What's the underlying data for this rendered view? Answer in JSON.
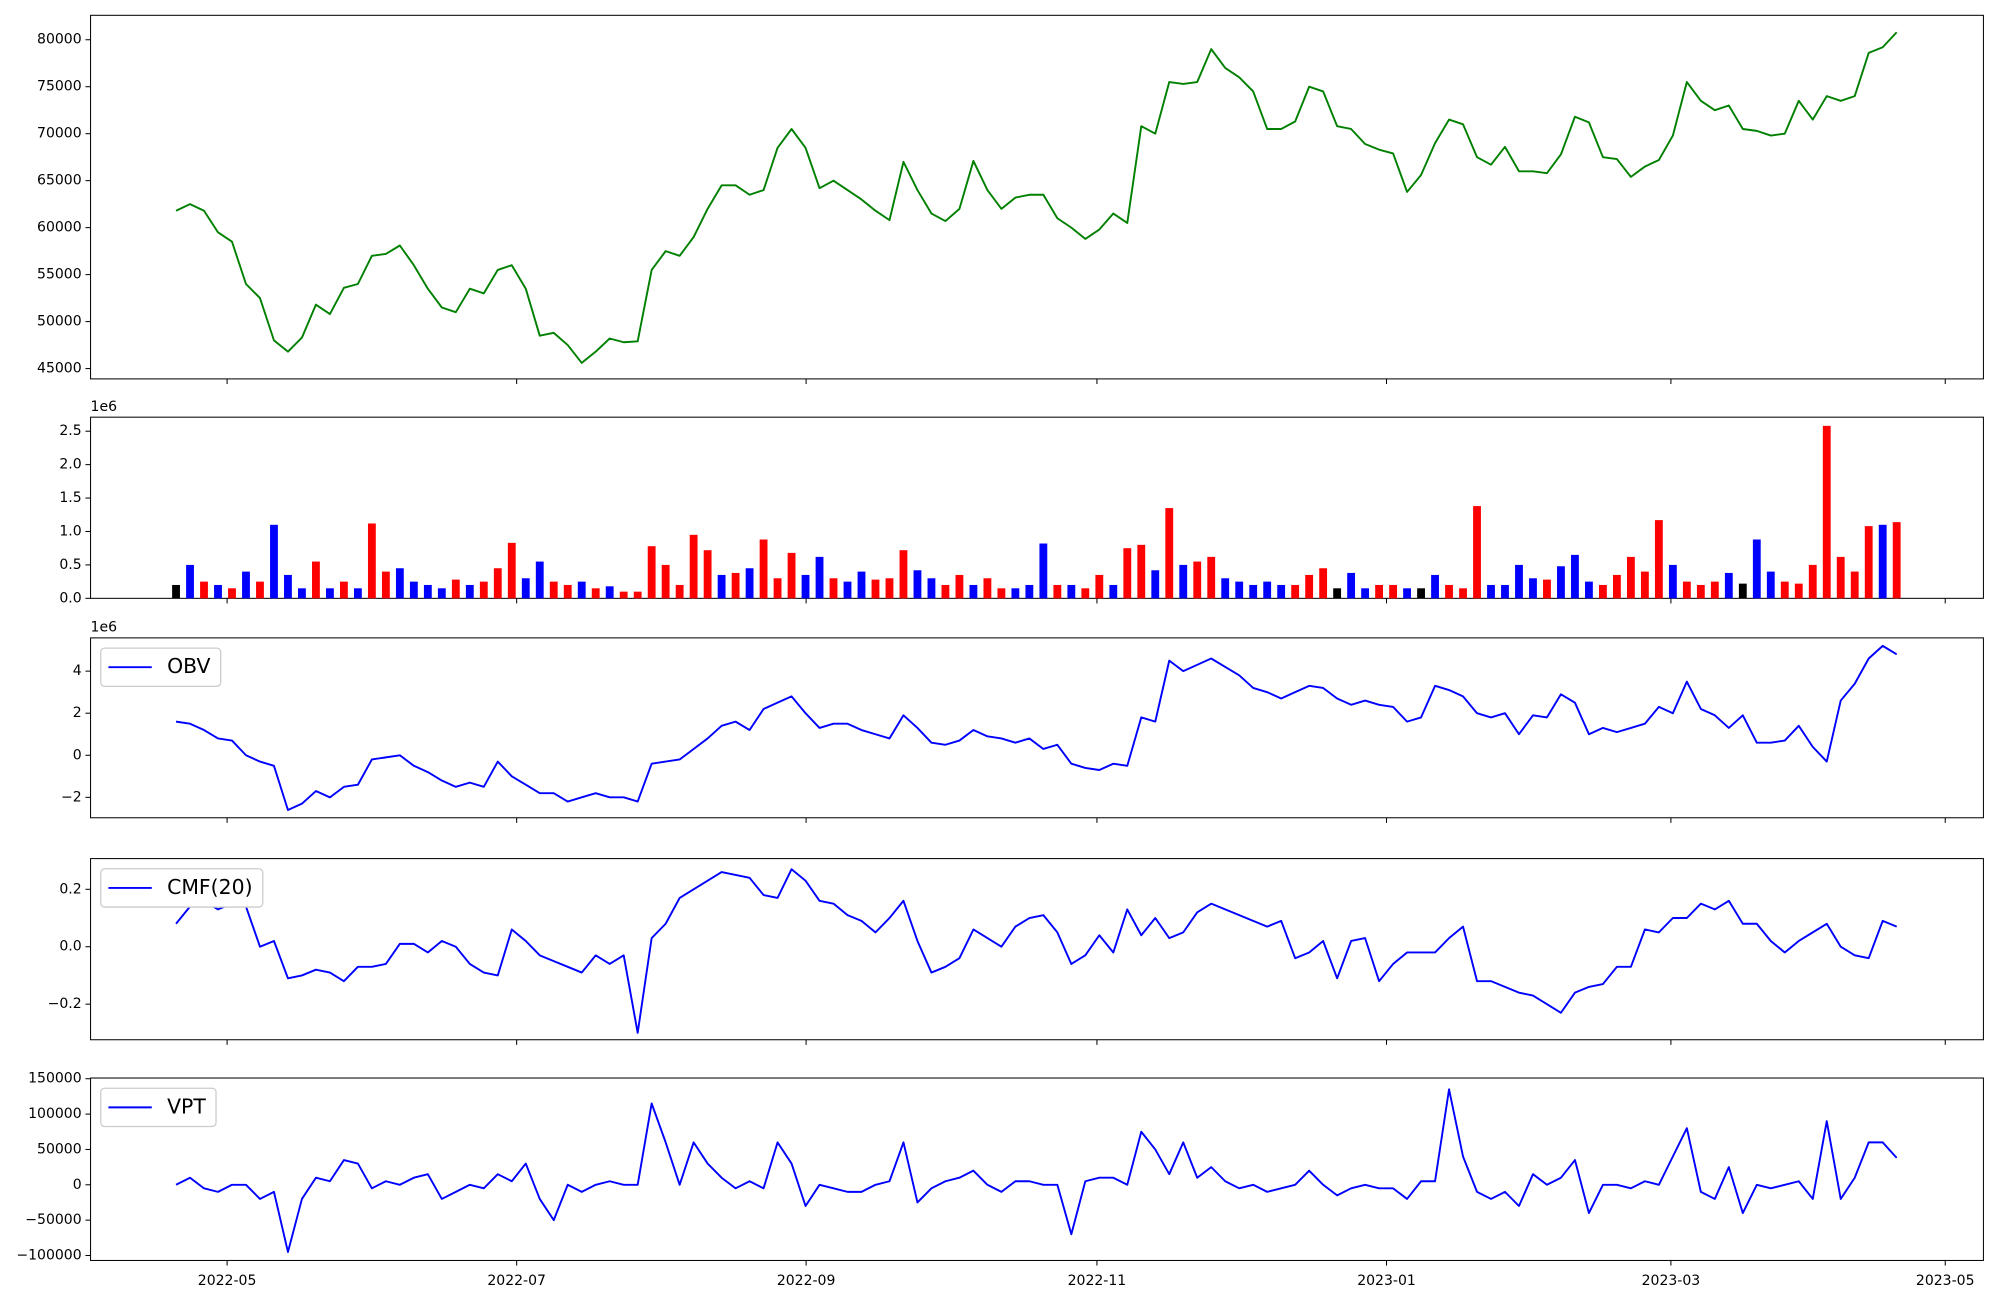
{
  "chart_data": [
    {
      "type": "line",
      "ylim": [
        43900,
        82600
      ],
      "yticks": [
        45000,
        50000,
        55000,
        60000,
        65000,
        70000,
        75000,
        80000
      ],
      "series": [
        {
          "color": "green",
          "values": [
            61800,
            62500,
            61800,
            59500,
            58500,
            54000,
            52500,
            48000,
            46800,
            48300,
            51800,
            50800,
            53600,
            54000,
            57000,
            57200,
            58100,
            56000,
            53500,
            51500,
            51000,
            53500,
            53000,
            55500,
            56000,
            53500,
            48500,
            48800,
            47500,
            45600,
            46800,
            48200,
            47800,
            47900,
            55500,
            57500,
            57000,
            59000,
            62000,
            64500,
            64500,
            63500,
            64000,
            68500,
            70500,
            68500,
            64200,
            65000,
            64000,
            63000,
            61800,
            60800,
            67000,
            64000,
            61500,
            60700,
            62000,
            67100,
            64000,
            62000,
            63200,
            63500,
            63500,
            61000,
            60000,
            58800,
            59800,
            61500,
            60500,
            70800,
            70000,
            75500,
            75300,
            75500,
            79000,
            77000,
            76000,
            74500,
            70500,
            70500,
            71300,
            75000,
            74500,
            70800,
            70500,
            68900,
            68300,
            67900,
            63800,
            65600,
            69000,
            71500,
            71000,
            67500,
            66700,
            68600,
            66000,
            66000,
            65800,
            67800,
            71800,
            71200,
            67500,
            67300,
            65400,
            66500,
            67200,
            69800,
            75500,
            73500,
            72500,
            73000,
            70500,
            70300,
            69800,
            70000,
            73500,
            71500,
            74000,
            73500,
            74000,
            78600,
            79200,
            80800
          ]
        }
      ]
    },
    {
      "type": "bar",
      "ylim": [
        0,
        2.71
      ],
      "y_offset_label": "1e6",
      "yticks": [
        {
          "value": 0,
          "label": "0.0"
        },
        {
          "value": 0.5,
          "label": "0.5"
        },
        {
          "value": 1,
          "label": "1.0"
        },
        {
          "value": 1.5,
          "label": "1.5"
        },
        {
          "value": 2,
          "label": "2.0"
        },
        {
          "value": 2.5,
          "label": "2.5"
        }
      ],
      "series": [
        {
          "values": [
            0.2,
            0.5,
            0.25,
            0.2,
            0.15,
            0.4,
            0.25,
            1.1,
            0.35,
            0.15,
            0.55,
            0.15,
            0.25,
            0.15,
            1.12,
            0.4,
            0.45,
            0.25,
            0.2,
            0.15,
            0.28,
            0.2,
            0.25,
            0.45,
            0.83,
            0.3,
            0.55,
            0.25,
            0.2,
            0.25,
            0.15,
            0.18,
            0.1,
            0.1,
            0.78,
            0.5,
            0.2,
            0.95,
            0.72,
            0.35,
            0.38,
            0.45,
            0.88,
            0.3,
            0.68,
            0.35,
            0.62,
            0.3,
            0.25,
            0.4,
            0.28,
            0.3,
            0.72,
            0.42,
            0.3,
            0.2,
            0.35,
            0.2,
            0.3,
            0.15,
            0.15,
            0.2,
            0.82,
            0.2,
            0.2,
            0.15,
            0.35,
            0.2,
            0.75,
            0.8,
            0.42,
            1.35,
            0.5,
            0.55,
            0.62,
            0.3,
            0.25,
            0.2,
            0.25,
            0.2,
            0.2,
            0.35,
            0.45,
            0.15,
            0.38,
            0.15,
            0.2,
            0.2,
            0.15,
            0.15,
            0.35,
            0.2,
            0.15,
            1.38,
            0.2,
            0.2,
            0.5,
            0.3,
            0.28,
            0.48,
            0.65,
            0.25,
            0.2,
            0.35,
            0.62,
            0.4,
            1.17,
            0.5,
            0.25,
            0.2,
            0.25,
            0.38,
            0.22,
            0.88,
            0.4,
            0.25,
            0.22,
            0.5,
            2.58,
            0.62,
            0.4,
            1.08,
            1.1,
            1.14
          ],
          "colors": [
            "black",
            "blue",
            "red",
            "blue",
            "red",
            "blue",
            "red",
            "blue",
            "blue",
            "blue",
            "red",
            "blue",
            "red",
            "blue",
            "red",
            "red",
            "blue",
            "blue",
            "blue",
            "blue",
            "red",
            "blue",
            "red",
            "red",
            "red",
            "blue",
            "blue",
            "red",
            "red",
            "blue",
            "red",
            "blue",
            "red",
            "red",
            "red",
            "red",
            "red",
            "red",
            "red",
            "blue",
            "red",
            "blue",
            "red",
            "red",
            "red",
            "blue",
            "blue",
            "red",
            "blue",
            "blue",
            "red",
            "red",
            "red",
            "blue",
            "blue",
            "red",
            "red",
            "blue",
            "red",
            "red",
            "blue",
            "blue",
            "blue",
            "red",
            "blue",
            "red",
            "red",
            "blue",
            "red",
            "red",
            "blue",
            "red",
            "blue",
            "red",
            "red",
            "blue",
            "blue",
            "blue",
            "blue",
            "blue",
            "red",
            "red",
            "red",
            "black",
            "blue",
            "blue",
            "red",
            "red",
            "blue",
            "black",
            "blue",
            "red",
            "red",
            "red",
            "blue",
            "blue",
            "blue",
            "blue",
            "red",
            "blue",
            "blue",
            "blue",
            "red",
            "red",
            "red",
            "red",
            "red",
            "blue",
            "red",
            "red",
            "red",
            "blue",
            "black",
            "blue",
            "blue",
            "red",
            "red",
            "red",
            "red",
            "red",
            "red",
            "red",
            "blue",
            "red"
          ]
        }
      ]
    },
    {
      "type": "line",
      "ylim": [
        -2.97,
        5.58
      ],
      "y_offset_label": "1e6",
      "legend": "upper left",
      "yticks": [
        {
          "value": -2,
          "label": "−2"
        },
        0,
        2,
        4
      ],
      "series": [
        {
          "name": "OBV",
          "color": "blue",
          "values": [
            1.6,
            1.5,
            1.2,
            0.8,
            0.7,
            0.0,
            -0.3,
            -0.5,
            -2.6,
            -2.3,
            -1.7,
            -2.0,
            -1.5,
            -1.4,
            -0.2,
            -0.1,
            0.0,
            -0.5,
            -0.8,
            -1.2,
            -1.5,
            -1.3,
            -1.5,
            -0.3,
            -1.0,
            -1.4,
            -1.8,
            -1.8,
            -2.2,
            -2.0,
            -1.8,
            -2.0,
            -2.0,
            -2.2,
            -0.4,
            -0.3,
            -0.2,
            0.3,
            0.8,
            1.4,
            1.6,
            1.2,
            2.2,
            2.5,
            2.8,
            2.0,
            1.3,
            1.5,
            1.5,
            1.2,
            1.0,
            0.8,
            1.9,
            1.3,
            0.6,
            0.5,
            0.7,
            1.2,
            0.9,
            0.8,
            0.6,
            0.8,
            0.3,
            0.5,
            -0.4,
            -0.6,
            -0.7,
            -0.4,
            -0.5,
            1.8,
            1.6,
            4.5,
            4.0,
            4.3,
            4.6,
            4.2,
            3.8,
            3.2,
            3.0,
            2.7,
            3.0,
            3.3,
            3.2,
            2.7,
            2.4,
            2.6,
            2.4,
            2.3,
            1.6,
            1.8,
            3.3,
            3.1,
            2.8,
            2.0,
            1.8,
            2.0,
            1.0,
            1.9,
            1.8,
            2.9,
            2.5,
            1.0,
            1.3,
            1.1,
            1.3,
            1.5,
            2.3,
            2.0,
            3.5,
            2.2,
            1.9,
            1.3,
            1.9,
            0.6,
            0.6,
            0.7,
            1.4,
            0.4,
            -0.3,
            2.6,
            3.4,
            4.6,
            5.2,
            4.8
          ]
        }
      ]
    },
    {
      "type": "line",
      "ylim": [
        -0.324,
        0.307
      ],
      "legend": "upper left",
      "yticks": [
        {
          "value": -0.2,
          "label": "−0.2"
        },
        {
          "value": 0,
          "label": "0.0"
        },
        0.2
      ],
      "series": [
        {
          "name": "CMF(20)",
          "color": "blue",
          "values": [
            0.08,
            0.14,
            0.16,
            0.13,
            0.15,
            0.14,
            0.0,
            0.02,
            -0.11,
            -0.1,
            -0.08,
            -0.09,
            -0.12,
            -0.07,
            -0.07,
            -0.06,
            0.01,
            0.01,
            -0.02,
            0.02,
            0.0,
            -0.06,
            -0.09,
            -0.1,
            0.06,
            0.02,
            -0.03,
            -0.05,
            -0.07,
            -0.09,
            -0.03,
            -0.06,
            -0.03,
            -0.3,
            0.03,
            0.08,
            0.17,
            0.2,
            0.23,
            0.26,
            0.25,
            0.24,
            0.18,
            0.17,
            0.27,
            0.23,
            0.16,
            0.15,
            0.11,
            0.09,
            0.05,
            0.1,
            0.16,
            0.02,
            -0.09,
            -0.07,
            -0.04,
            0.06,
            0.03,
            0.0,
            0.07,
            0.1,
            0.11,
            0.05,
            -0.06,
            -0.03,
            0.04,
            -0.02,
            0.13,
            0.04,
            0.1,
            0.03,
            0.05,
            0.12,
            0.15,
            0.13,
            0.11,
            0.09,
            0.07,
            0.09,
            -0.04,
            -0.02,
            0.02,
            -0.11,
            0.02,
            0.03,
            -0.12,
            -0.06,
            -0.02,
            -0.02,
            -0.02,
            0.03,
            0.07,
            -0.12,
            -0.12,
            -0.14,
            -0.16,
            -0.17,
            -0.2,
            -0.23,
            -0.16,
            -0.14,
            -0.13,
            -0.07,
            -0.07,
            0.06,
            0.05,
            0.1,
            0.1,
            0.15,
            0.13,
            0.16,
            0.08,
            0.08,
            0.02,
            -0.02,
            0.02,
            0.05,
            0.08,
            0.0,
            -0.03,
            -0.04,
            0.09,
            0.07
          ]
        }
      ]
    },
    {
      "type": "line",
      "ylim": [
        -107000,
        151000
      ],
      "legend": "upper left",
      "yticks": [
        {
          "value": -100000,
          "label": "−100000"
        },
        {
          "value": -50000,
          "label": "−50000"
        },
        0,
        50000,
        100000,
        150000
      ],
      "xlim": [
        -6.11,
        129.2
      ],
      "xticks": [
        {
          "value": 3.65,
          "label": "2022-05"
        },
        {
          "value": 24.35,
          "label": "2022-07"
        },
        {
          "value": 45.04,
          "label": "2022-09"
        },
        {
          "value": 65.83,
          "label": "2022-11"
        },
        {
          "value": 86.53,
          "label": "2023-01"
        },
        {
          "value": 106.86,
          "label": "2023-03"
        },
        {
          "value": 126.47,
          "label": "2023-05"
        }
      ],
      "series": [
        {
          "name": "VPT",
          "color": "blue",
          "values": [
            0,
            10000,
            -5000,
            -10000,
            0,
            0,
            -20000,
            -10000,
            -95000,
            -20000,
            10000,
            5000,
            35000,
            30000,
            -5000,
            5000,
            0,
            10000,
            15000,
            -20000,
            -10000,
            0,
            -5000,
            15000,
            5000,
            30000,
            -20000,
            -50000,
            0,
            -10000,
            0,
            5000,
            0,
            0,
            115000,
            60000,
            0,
            60000,
            30000,
            10000,
            -5000,
            5000,
            -5000,
            60000,
            30000,
            -30000,
            0,
            -5000,
            -10000,
            -10000,
            0,
            5000,
            60000,
            -25000,
            -5000,
            5000,
            10000,
            20000,
            0,
            -10000,
            5000,
            5000,
            0,
            0,
            -70000,
            5000,
            10000,
            10000,
            0,
            75000,
            50000,
            15000,
            60000,
            10000,
            25000,
            5000,
            -5000,
            0,
            -10000,
            -5000,
            0,
            20000,
            0,
            -15000,
            -5000,
            0,
            -5000,
            -5000,
            -20000,
            5000,
            5000,
            135000,
            40000,
            -10000,
            -20000,
            -10000,
            -30000,
            15000,
            0,
            10000,
            35000,
            -40000,
            0,
            0,
            -5000,
            5000,
            0,
            40000,
            80000,
            -10000,
            -20000,
            25000,
            -40000,
            0,
            -5000,
            0,
            5000,
            -20000,
            90000,
            -20000,
            10000,
            60000,
            60000,
            38000
          ]
        }
      ]
    }
  ]
}
